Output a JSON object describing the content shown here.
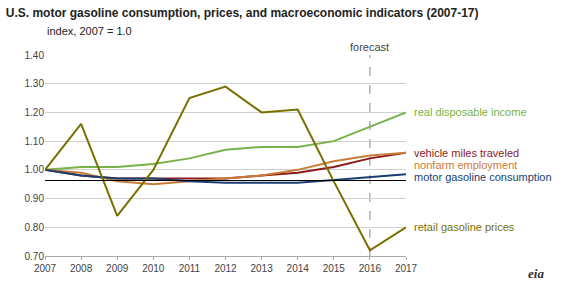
{
  "chart_data": {
    "type": "line",
    "title": "U.S. motor gasoline consumption, prices, and macroeconomic indicators (2007-17)",
    "subtitle": "index, 2007 = 1.0",
    "x": [
      2007,
      2008,
      2009,
      2010,
      2011,
      2012,
      2013,
      2014,
      2015,
      2016,
      2017
    ],
    "series": [
      {
        "name": "real disposable income",
        "color": "#78b24a",
        "values": [
          1.0,
          1.01,
          1.01,
          1.02,
          1.04,
          1.07,
          1.08,
          1.08,
          1.1,
          1.15,
          1.2
        ]
      },
      {
        "name": "vehicle miles traveled",
        "color": "#8b1a1a",
        "values": [
          1.0,
          0.98,
          0.97,
          0.97,
          0.97,
          0.97,
          0.98,
          0.99,
          1.01,
          1.04,
          1.06
        ]
      },
      {
        "name": "nonfarm employment",
        "color": "#c97c3a",
        "values": [
          1.0,
          0.99,
          0.96,
          0.95,
          0.96,
          0.97,
          0.98,
          1.0,
          1.03,
          1.05,
          1.06
        ]
      },
      {
        "name": "motor gasoline consumption",
        "color": "#1a3f6f",
        "values": [
          1.0,
          0.98,
          0.97,
          0.97,
          0.96,
          0.955,
          0.955,
          0.955,
          0.965,
          0.975,
          0.985
        ]
      },
      {
        "name": "retail gasoline prices",
        "color": "#7a7000",
        "values": [
          1.0,
          1.16,
          0.84,
          1.0,
          1.25,
          1.29,
          1.2,
          1.21,
          0.96,
          0.72,
          0.8
        ]
      }
    ],
    "hlines": [
      {
        "y": 0.963,
        "color": "#000000"
      }
    ],
    "vlines": [
      {
        "x": 2016,
        "line_style": "dash"
      }
    ],
    "annotations": [
      {
        "x": 2016,
        "text": "forecast"
      },
      {
        "text": "eia"
      }
    ],
    "xlim": [
      2007,
      2017
    ],
    "xticks": [
      2007,
      2008,
      2009,
      2010,
      2011,
      2012,
      2013,
      2014,
      2015,
      2016,
      2017
    ],
    "ylim": [
      0.7,
      1.4
    ],
    "yticks": [
      {
        "value": 0.7,
        "label": "0.70"
      },
      {
        "value": 0.8,
        "label": "0.80"
      },
      {
        "value": 0.9,
        "label": "0.90"
      },
      {
        "value": 1.0,
        "label": "1.00"
      },
      {
        "value": 1.1,
        "label": "1.10"
      },
      {
        "value": 1.2,
        "label": "1.20"
      },
      {
        "value": 1.3,
        "label": "1.30"
      },
      {
        "value": 1.4,
        "label": "1.40"
      }
    ],
    "grid": true
  }
}
